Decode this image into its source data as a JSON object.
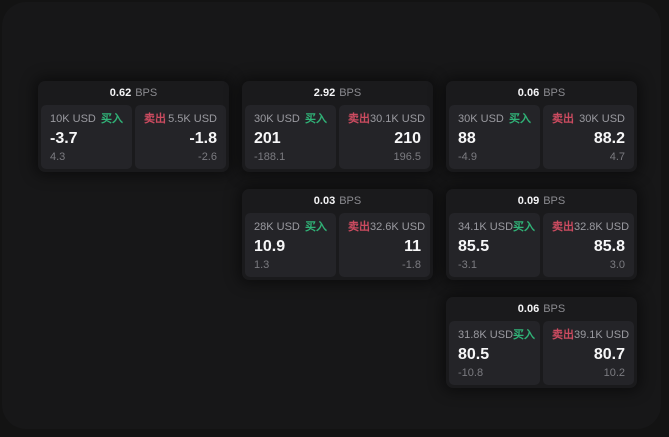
{
  "labels": {
    "buy": "买入",
    "sell": "卖出",
    "bps_unit": "BPS"
  },
  "colors": {
    "background": "#131313",
    "surface": "#171718",
    "card": "#1a1a1c",
    "panel": "#242428",
    "buy_green": "#30b277",
    "sell_red": "#cc4b60",
    "value_white": "#f7f7f8",
    "label_gray": "#9a9aa0"
  },
  "cards": [
    {
      "bps": "0.62",
      "buy": {
        "amount": "10K USD",
        "value": "-3.7",
        "sub": "4.3"
      },
      "sell": {
        "amount": "5.5K USD",
        "value": "-1.8",
        "sub": "-2.6"
      }
    },
    {
      "bps": "2.92",
      "buy": {
        "amount": "30K USD",
        "value": "201",
        "sub": "-188.1"
      },
      "sell": {
        "amount": "30.1K USD",
        "value": "210",
        "sub": "196.5"
      }
    },
    {
      "bps": "0.06",
      "buy": {
        "amount": "30K USD",
        "value": "88",
        "sub": "-4.9"
      },
      "sell": {
        "amount": "30K USD",
        "value": "88.2",
        "sub": "4.7"
      }
    },
    {
      "bps": "0.03",
      "buy": {
        "amount": "28K USD",
        "value": "10.9",
        "sub": "1.3"
      },
      "sell": {
        "amount": "32.6K USD",
        "value": "11",
        "sub": "-1.8"
      }
    },
    {
      "bps": "0.09",
      "buy": {
        "amount": "34.1K USD",
        "value": "85.5",
        "sub": "-3.1"
      },
      "sell": {
        "amount": "32.8K USD",
        "value": "85.8",
        "sub": "3.0"
      }
    },
    {
      "bps": "0.06",
      "buy": {
        "amount": "31.8K USD",
        "value": "80.5",
        "sub": "-10.8"
      },
      "sell": {
        "amount": "39.1K USD",
        "value": "80.7",
        "sub": "10.2"
      }
    }
  ]
}
